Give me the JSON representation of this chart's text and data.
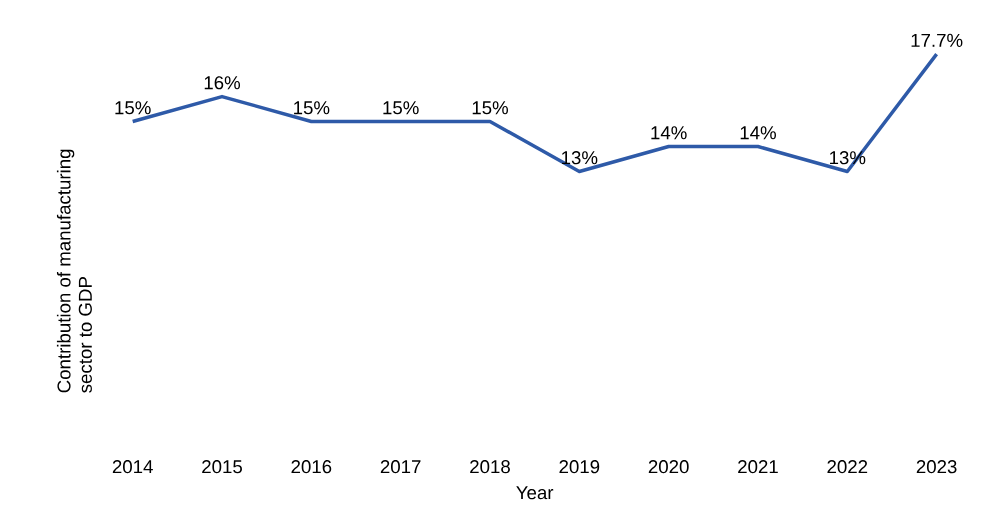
{
  "chart_data": {
    "type": "line",
    "xlabel": "Year",
    "ylabel": "Contribution of manufacturing sector to GDP",
    "categories": [
      "2014",
      "2015",
      "2016",
      "2017",
      "2018",
      "2019",
      "2020",
      "2021",
      "2022",
      "2023"
    ],
    "series": [
      {
        "color": "#2e5aa8",
        "values": [
          15,
          16,
          15,
          15,
          15,
          13,
          14,
          14,
          13,
          17.7
        ],
        "value_labels": [
          "15%",
          "16%",
          "15%",
          "15%",
          "15%",
          "13%",
          "14%",
          "14%",
          "13%",
          "17.7%"
        ]
      }
    ],
    "tick_labels": "x",
    "line_style": "solid"
  }
}
